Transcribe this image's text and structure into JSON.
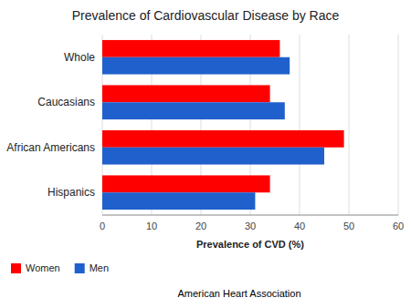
{
  "chart_data": {
    "type": "bar",
    "orientation": "horizontal",
    "title": "Prevalence of Cardiovascular Disease by Race",
    "categories": [
      "Whole",
      "Caucasians",
      "African Americans",
      "Hispanics"
    ],
    "series": [
      {
        "name": "Women",
        "color": "#FF0000",
        "values": [
          36,
          34,
          49,
          34
        ]
      },
      {
        "name": "Men",
        "color": "#2060CC",
        "values": [
          38,
          37,
          45,
          31
        ]
      }
    ],
    "xlabel": "Prevalence of CVD (%)",
    "xlim": [
      0,
      60
    ],
    "xticks": [
      0,
      10,
      20,
      30,
      40,
      50,
      60
    ],
    "grid": true,
    "legend": "bottom",
    "annotations": [
      "American Heart Association"
    ]
  }
}
